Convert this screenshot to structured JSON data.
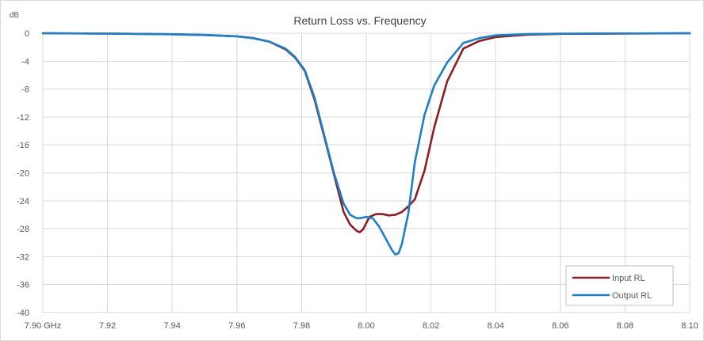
{
  "chart_data": {
    "type": "line",
    "title": "Return Loss vs. Frequency",
    "ylabel": "dB",
    "xlabel": "",
    "xlim": [
      7.9,
      8.1
    ],
    "ylim": [
      -40,
      0
    ],
    "grid": true,
    "legend_position": "bottom-right",
    "x_ticks": [
      "7.90 GHz",
      "7.92",
      "7.94",
      "7.96",
      "7.98",
      "8.00",
      "8.02",
      "8.04",
      "8.06",
      "8.08",
      "8.10"
    ],
    "y_ticks": [
      "0",
      "-4",
      "-8",
      "-12",
      "-16",
      "-20",
      "-24",
      "-28",
      "-32",
      "-36",
      "-40"
    ],
    "series": [
      {
        "name": "Input RL",
        "color": "#8B1E24",
        "x": [
          7.9,
          7.92,
          7.94,
          7.95,
          7.96,
          7.965,
          7.97,
          7.975,
          7.978,
          7.981,
          7.984,
          7.987,
          7.99,
          7.993,
          7.995,
          7.997,
          7.998,
          7.999,
          8.0,
          8.001,
          8.003,
          8.005,
          8.007,
          8.009,
          8.011,
          8.013,
          8.015,
          8.018,
          8.021,
          8.025,
          8.03,
          8.035,
          8.04,
          8.05,
          8.06,
          8.08,
          8.1
        ],
        "values": [
          0,
          -0.05,
          -0.15,
          -0.25,
          -0.45,
          -0.7,
          -1.2,
          -2.3,
          -3.5,
          -5.4,
          -9.5,
          -14.8,
          -20.2,
          -25.6,
          -27.4,
          -28.3,
          -28.5,
          -28.1,
          -27.2,
          -26.3,
          -25.9,
          -25.9,
          -26.1,
          -26.0,
          -25.6,
          -24.8,
          -23.8,
          -19.7,
          -13.5,
          -6.9,
          -2.2,
          -1.1,
          -0.55,
          -0.2,
          -0.1,
          -0.05,
          0
        ]
      },
      {
        "name": "Output RL",
        "color": "#1F7FC6",
        "x": [
          7.9,
          7.92,
          7.94,
          7.95,
          7.96,
          7.965,
          7.97,
          7.975,
          7.978,
          7.981,
          7.984,
          7.987,
          7.99,
          7.993,
          7.995,
          7.997,
          7.998,
          8.0,
          8.002,
          8.004,
          8.006,
          8.008,
          8.009,
          8.01,
          8.011,
          8.013,
          8.015,
          8.018,
          8.021,
          8.025,
          8.03,
          8.035,
          8.04,
          8.05,
          8.06,
          8.08,
          8.1
        ],
        "values": [
          0,
          -0.05,
          -0.15,
          -0.25,
          -0.45,
          -0.7,
          -1.2,
          -2.2,
          -3.4,
          -5.3,
          -9.2,
          -14.6,
          -20.0,
          -24.4,
          -26.0,
          -26.5,
          -26.5,
          -26.3,
          -26.5,
          -27.7,
          -29.4,
          -31.1,
          -31.7,
          -31.5,
          -30.2,
          -25.8,
          -18.5,
          -11.7,
          -7.5,
          -4.2,
          -1.4,
          -0.7,
          -0.3,
          -0.12,
          -0.06,
          -0.03,
          0
        ]
      }
    ]
  }
}
